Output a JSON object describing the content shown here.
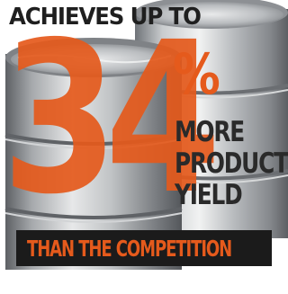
{
  "headline": "ACHIEVES UP TO",
  "stat": {
    "number": "34",
    "unit": "%"
  },
  "tagline": [
    "MORE",
    "PRODUCT",
    "YIELD"
  ],
  "banner": "THAN THE COMPETITION",
  "colors": {
    "accent": "#e55a1c",
    "banner_bg": "#1b1b1b",
    "text_dark": "#1f1f1f",
    "barrel_metal": "#a9acaf",
    "background": "#ffffff"
  },
  "graphics": {
    "background": "oil-barrel-illustration"
  }
}
